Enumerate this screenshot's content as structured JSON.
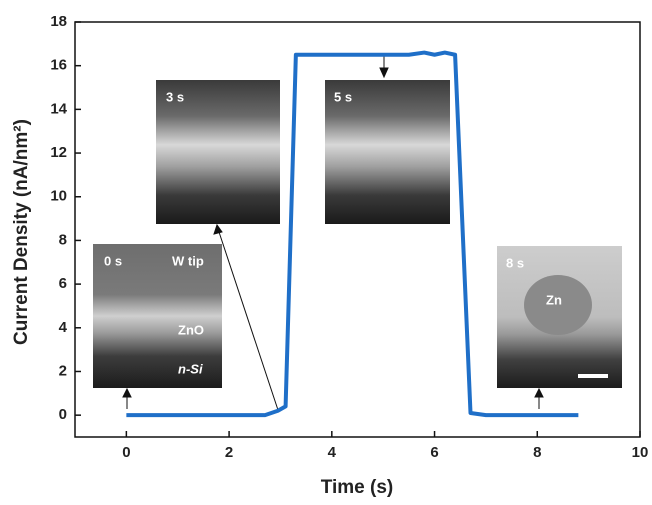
{
  "chart_data": {
    "type": "line",
    "xlabel": "Time (s)",
    "ylabel": "Current Density (nA/nm²)",
    "x": [
      0,
      1,
      2,
      2.7,
      2.95,
      3.1,
      3.3,
      4,
      5,
      5.5,
      5.8,
      6.0,
      6.2,
      6.4,
      6.7,
      7,
      8,
      8.8
    ],
    "values": [
      0,
      0,
      0,
      0,
      0.2,
      0.4,
      16.5,
      16.5,
      16.5,
      16.5,
      16.6,
      16.5,
      16.6,
      16.5,
      0.1,
      0,
      0,
      0
    ],
    "color": "#1f6fc8",
    "xlim": [
      -1,
      10
    ],
    "ylim": [
      -1,
      18
    ],
    "xticks": [
      0,
      2,
      4,
      6,
      8,
      10
    ],
    "yticks": [
      0,
      2,
      4,
      6,
      8,
      10,
      12,
      14,
      16,
      18
    ],
    "annotations": [
      "0 s",
      "W tip",
      "ZnO",
      "n-Si",
      "3 s",
      "5 s",
      "8 s",
      "Zn"
    ]
  }
}
